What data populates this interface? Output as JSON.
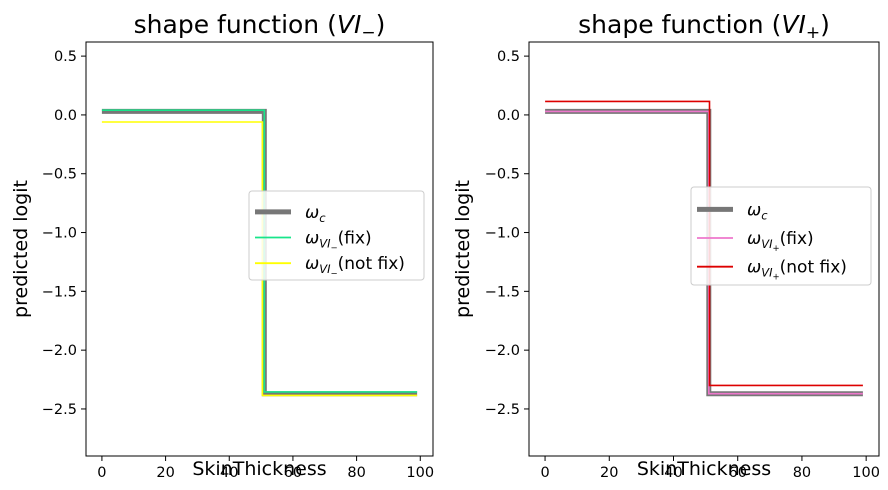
{
  "chart_data": [
    {
      "type": "line",
      "title_prefix": "shape function (",
      "title_var": "VI",
      "title_sub": "−",
      "title_suffix": ")",
      "xlabel": "SkinThickness",
      "ylabel": "predicted logit",
      "xlim": [
        -5,
        104
      ],
      "ylim": [
        -2.9,
        0.62
      ],
      "xticks": [
        0,
        20,
        40,
        60,
        80,
        100
      ],
      "xtick_labels": [
        "0",
        "20",
        "40",
        "60",
        "80",
        "100"
      ],
      "yticks": [
        0.5,
        0.0,
        -0.5,
        -1.0,
        -1.5,
        -2.0,
        -2.5
      ],
      "ytick_labels": [
        "0.5",
        "0.0",
        "−0.5",
        "−1.0",
        "−1.5",
        "−2.0",
        "−2.5"
      ],
      "legend": {
        "location": "center-right",
        "entries": [
          {
            "sym": "ω",
            "sub": "c",
            "subsub": "",
            "tail": ""
          },
          {
            "sym": "ω",
            "sub": "VI",
            "subsub": "−",
            "tail": "(fix)"
          },
          {
            "sym": "ω",
            "sub": "VI",
            "subsub": "−",
            "tail": "(not fix)"
          }
        ]
      },
      "series": [
        {
          "name": "omega_c",
          "color": "#777777",
          "style": "thick",
          "x": [
            0,
            51,
            51,
            99
          ],
          "y": [
            0.03,
            0.03,
            -2.37,
            -2.37
          ]
        },
        {
          "name": "omega_VI_minus_fix",
          "color": "#18e58a",
          "style": "normal",
          "x": [
            0,
            51,
            51,
            99
          ],
          "y": [
            0.04,
            0.04,
            -2.355,
            -2.355
          ]
        },
        {
          "name": "omega_VI_minus_not_fix",
          "color": "#ffff00",
          "style": "normal",
          "x": [
            0,
            50.4,
            50.4,
            99
          ],
          "y": [
            -0.06,
            -0.06,
            -2.385,
            -2.385
          ]
        }
      ]
    },
    {
      "type": "line",
      "title_prefix": "shape function (",
      "title_var": "VI",
      "title_sub": "+",
      "title_suffix": ")",
      "xlabel": "SkinThickness",
      "ylabel": "predicted logit",
      "xlim": [
        -5,
        104
      ],
      "ylim": [
        -2.9,
        0.62
      ],
      "xticks": [
        0,
        20,
        40,
        60,
        80,
        100
      ],
      "xtick_labels": [
        "0",
        "20",
        "40",
        "60",
        "80",
        "100"
      ],
      "yticks": [
        0.5,
        0.0,
        -0.5,
        -1.0,
        -1.5,
        -2.0,
        -2.5
      ],
      "ytick_labels": [
        "0.5",
        "0.0",
        "−0.5",
        "−1.0",
        "−1.5",
        "−2.0",
        "−2.5"
      ],
      "legend": {
        "location": "center-right",
        "entries": [
          {
            "sym": "ω",
            "sub": "c",
            "subsub": "",
            "tail": ""
          },
          {
            "sym": "ω",
            "sub": "VI",
            "subsub": "+",
            "tail": "(fix)"
          },
          {
            "sym": "ω",
            "sub": "VI",
            "subsub": "+",
            "tail": "(not fix)"
          }
        ]
      },
      "series": [
        {
          "name": "omega_c",
          "color": "#777777",
          "style": "thick",
          "x": [
            0,
            51,
            51,
            99
          ],
          "y": [
            0.03,
            0.03,
            -2.37,
            -2.37
          ]
        },
        {
          "name": "omega_VI_plus_fix",
          "color": "#ee77cc",
          "style": "normal",
          "x": [
            0,
            51,
            51,
            99
          ],
          "y": [
            0.03,
            0.03,
            -2.37,
            -2.37
          ]
        },
        {
          "name": "omega_VI_plus_not_fix",
          "color": "#dd0000",
          "style": "normal",
          "x": [
            0,
            51.2,
            51.2,
            99
          ],
          "y": [
            0.115,
            0.115,
            -2.3,
            -2.3
          ]
        }
      ]
    }
  ]
}
